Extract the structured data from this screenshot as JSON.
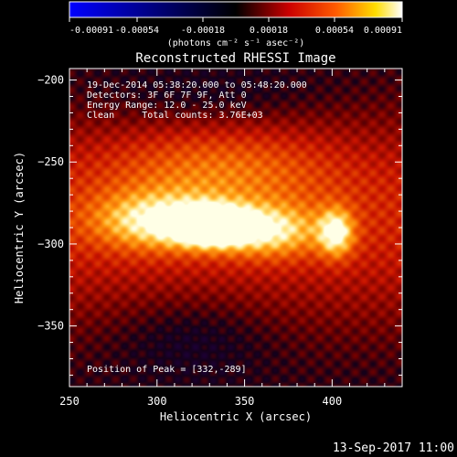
{
  "colorbar": {
    "tick_labels": [
      "-0.00091",
      "-0.00054",
      "-0.00018",
      "0.00018",
      "0.00054",
      "0.00091"
    ],
    "ticks": [
      -0.00091,
      -0.00054,
      -0.00018,
      0.00018,
      0.00054,
      0.00091
    ],
    "range": [
      -0.00091,
      0.00091
    ],
    "unit_label": "(photons cm⁻² s⁻¹ asec⁻²)",
    "colors": [
      "#0000ff",
      "#000000",
      "#ff0000",
      "#ffff00",
      "#ffffff"
    ]
  },
  "chart_data": {
    "type": "heatmap",
    "title": "Reconstructed RHESSI Image",
    "xlabel": "Heliocentric X (arcsec)",
    "ylabel": "Heliocentric Y (arcsec)",
    "xlim": [
      250,
      440
    ],
    "ylim": [
      -387,
      -193
    ],
    "xticks": [
      250,
      300,
      350,
      400
    ],
    "yticks": [
      -200,
      -250,
      -300,
      -350
    ],
    "xtick_labels": [
      "250",
      "300",
      "350",
      "400"
    ],
    "ytick_labels": [
      "−200",
      "−250",
      "−300",
      "−350"
    ],
    "peak": [
      332,
      -289
    ],
    "sources": [
      {
        "x": 332,
        "y": -289,
        "amp": 1.0,
        "sx": 15,
        "sy": 8
      },
      {
        "x": 300,
        "y": -286,
        "amp": 0.55,
        "sx": 25,
        "sy": 12
      },
      {
        "x": 365,
        "y": -292,
        "amp": 0.5,
        "sx": 20,
        "sy": 11
      },
      {
        "x": 402,
        "y": -293,
        "amp": 0.6,
        "sx": 7,
        "sy": 10
      },
      {
        "x": 335,
        "y": -255,
        "amp": 0.3,
        "sx": 45,
        "sy": 20
      }
    ],
    "annotations": [
      "19-Dec-2014 05:38:20.000 to 05:48:20.000",
      "Detectors: 3F 6F 7F 9F, Att 0",
      "Energy Range: 12.0 - 25.0 keV",
      "Clean     Total counts: 3.76E+03",
      "Position of Peak = [332,-289]"
    ]
  },
  "footer_date": "13-Sep-2017 11:00"
}
